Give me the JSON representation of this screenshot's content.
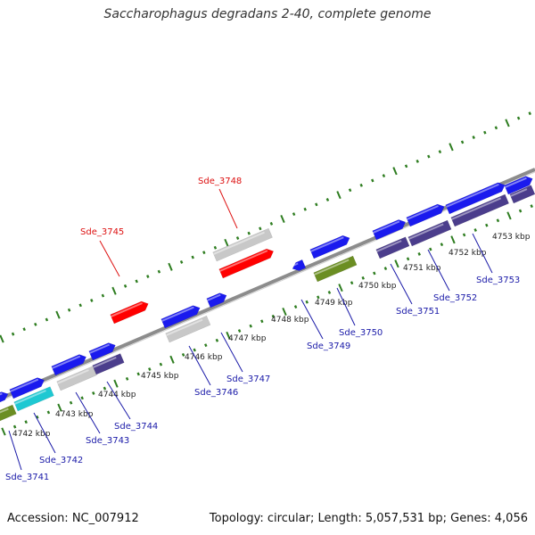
{
  "title": "Saccharophagus degradans 2-40, complete genome",
  "footer": {
    "accession": "Accession: NC_007912",
    "summary": "Topology: circular; Length: 5,057,531 bp; Genes: 4,056"
  },
  "colors": {
    "backbone": "#8c8c8c",
    "tick": "#2e7d20",
    "highlight": "#ff0000",
    "forward_gene": "#1a1aee",
    "reverse_gene": "#4b3d8c",
    "hypothetical": "#c8c8c8",
    "rna": "#1ec8d2",
    "other": "#6b8e23",
    "label_default": "#1a1aa8",
    "label_highlight": "#dd1111"
  },
  "kbp_labels": [
    "4742 kbp",
    "4743 kbp",
    "4744 kbp",
    "4745 kbp",
    "4746 kbp",
    "4747 kbp",
    "4748 kbp",
    "4749 kbp",
    "4750 kbp",
    "4751 kbp",
    "4752 kbp",
    "4753 kbp"
  ],
  "gene_labels": [
    {
      "text": "Sde_3741",
      "color": "blue"
    },
    {
      "text": "Sde_3742",
      "color": "blue"
    },
    {
      "text": "Sde_3743",
      "color": "blue"
    },
    {
      "text": "Sde_3744",
      "color": "blue"
    },
    {
      "text": "Sde_3745",
      "color": "red"
    },
    {
      "text": "Sde_3746",
      "color": "blue"
    },
    {
      "text": "Sde_3747",
      "color": "blue"
    },
    {
      "text": "Sde_3748",
      "color": "red"
    },
    {
      "text": "Sde_3749",
      "color": "blue"
    },
    {
      "text": "Sde_3750",
      "color": "blue"
    },
    {
      "text": "Sde_3751",
      "color": "blue"
    },
    {
      "text": "Sde_3752",
      "color": "blue"
    },
    {
      "text": "Sde_3753",
      "color": "blue"
    }
  ]
}
